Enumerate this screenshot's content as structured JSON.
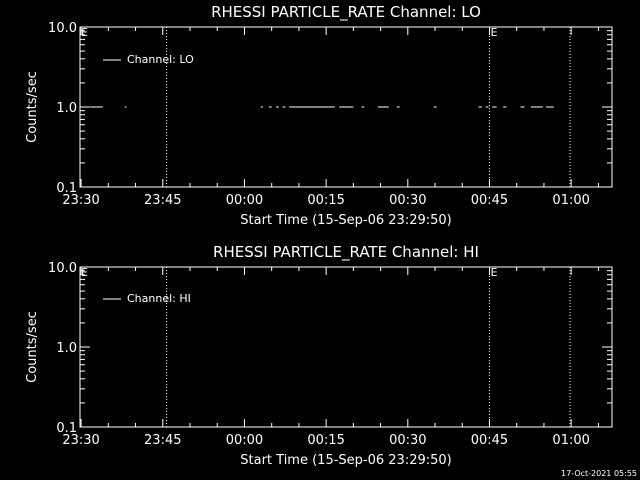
{
  "chart_data": [
    {
      "type": "line",
      "title": "RHESSI PARTICLE_RATE Channel: LO",
      "xlabel": "Start Time (15-Sep-06 23:29:50)",
      "ylabel": "Counts/sec",
      "y_scale": "log",
      "ylim": [
        0.1,
        10.0
      ],
      "y_ticks": [
        "0.1",
        "1.0",
        "10.0"
      ],
      "x_range_minutes": [
        -0.2,
        97.5
      ],
      "x_ticks": [
        {
          "label": "23:30",
          "minute": 0
        },
        {
          "label": "23:45",
          "minute": 15
        },
        {
          "label": "00:00",
          "minute": 30
        },
        {
          "label": "00:15",
          "minute": 45
        },
        {
          "label": "00:30",
          "minute": 60
        },
        {
          "label": "00:45",
          "minute": 75
        },
        {
          "label": "01:00",
          "minute": 90
        }
      ],
      "grid": false,
      "legend_position": "top-left",
      "series": [
        {
          "name": "Channel: LO",
          "segments": [
            [
              1.7,
              4.0,
              1.0
            ],
            [
              8.0,
              8.3,
              1.0
            ],
            [
              33.0,
              33.4,
              1.0
            ],
            [
              34.5,
              35.0,
              1.0
            ],
            [
              35.8,
              36.3,
              1.0
            ],
            [
              37.0,
              37.5,
              1.0
            ],
            [
              38.2,
              46.6,
              1.0
            ],
            [
              47.4,
              50.0,
              1.0
            ],
            [
              51.5,
              52.0,
              1.0
            ],
            [
              54.5,
              56.5,
              1.0
            ],
            [
              58.0,
              58.5,
              1.0
            ],
            [
              64.8,
              65.3,
              1.0
            ],
            [
              73.0,
              73.6,
              1.0
            ],
            [
              74.3,
              74.8,
              1.0
            ],
            [
              75.5,
              76.3,
              1.0
            ],
            [
              77.5,
              78.1,
              1.0
            ],
            [
              80.7,
              81.4,
              1.0
            ],
            [
              82.6,
              84.8,
              1.0
            ],
            [
              85.4,
              86.8,
              1.0
            ]
          ]
        }
      ],
      "vertical_markers": [
        {
          "minute": 15.7,
          "label": ""
        },
        {
          "minute": 75.0,
          "label": "E"
        },
        {
          "minute": 89.8,
          "label": ""
        }
      ],
      "corner_label": "E"
    },
    {
      "type": "line",
      "title": "RHESSI PARTICLE_RATE Channel: HI",
      "xlabel": "Start Time (15-Sep-06 23:29:50)",
      "ylabel": "Counts/sec",
      "y_scale": "log",
      "ylim": [
        0.1,
        10.0
      ],
      "y_ticks": [
        "0.1",
        "1.0",
        "10.0"
      ],
      "x_range_minutes": [
        -0.2,
        97.5
      ],
      "x_ticks": [
        {
          "label": "23:30",
          "minute": 0
        },
        {
          "label": "23:45",
          "minute": 15
        },
        {
          "label": "00:00",
          "minute": 30
        },
        {
          "label": "00:15",
          "minute": 45
        },
        {
          "label": "00:30",
          "minute": 60
        },
        {
          "label": "00:45",
          "minute": 75
        },
        {
          "label": "01:00",
          "minute": 90
        }
      ],
      "grid": false,
      "legend_position": "top-left",
      "series": [
        {
          "name": "Channel: HI",
          "segments": []
        }
      ],
      "vertical_markers": [
        {
          "minute": 15.7,
          "label": ""
        },
        {
          "minute": 75.0,
          "label": "E"
        },
        {
          "minute": 89.8,
          "label": ""
        }
      ],
      "corner_label": "E"
    }
  ],
  "footer": {
    "timestamp": "17-Oct-2021 05:55"
  },
  "colors": {
    "background": "#000000",
    "foreground": "#ffffff"
  }
}
